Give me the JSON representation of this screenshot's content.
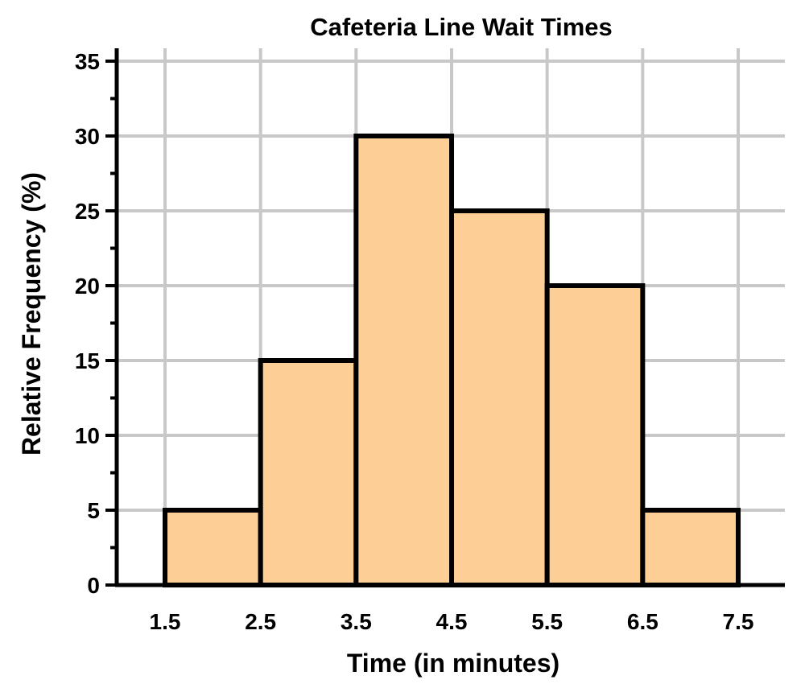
{
  "chart_data": {
    "type": "bar",
    "subtype": "histogram",
    "title": "Cafeteria Line Wait Times",
    "xlabel": "Time (in minutes)",
    "ylabel": "Relative Frequency (%)",
    "bin_edges": [
      1.5,
      2.5,
      3.5,
      4.5,
      5.5,
      6.5,
      7.5
    ],
    "values": [
      5,
      15,
      30,
      25,
      20,
      5
    ],
    "xticks": [
      "1.5",
      "2.5",
      "3.5",
      "4.5",
      "5.5",
      "6.5",
      "7.5"
    ],
    "yticks": [
      "0",
      "5",
      "10",
      "15",
      "20",
      "25",
      "30",
      "35"
    ],
    "xlim": [
      1.0,
      8.0
    ],
    "ylim": [
      0,
      35
    ],
    "grid": true,
    "colors": {
      "bar_fill": "#fdcf97",
      "bar_stroke": "#000000",
      "grid": "#c8c8c8",
      "axis": "#000000"
    }
  }
}
